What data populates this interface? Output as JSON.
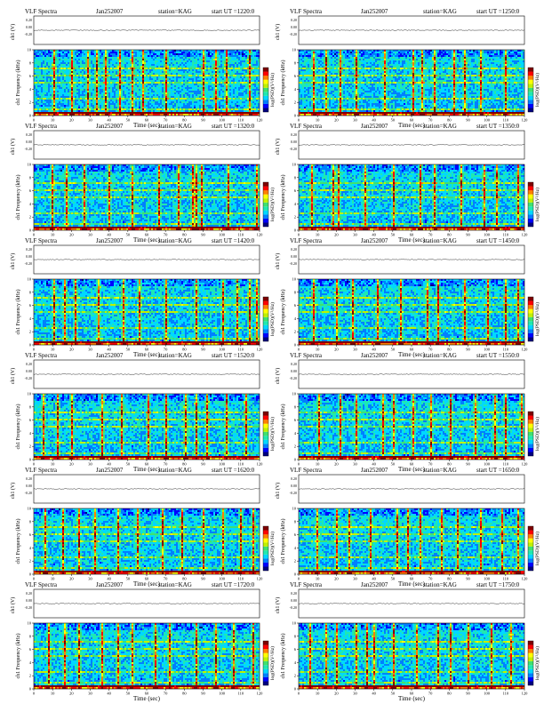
{
  "colors": {
    "colormap": [
      "#00007f",
      "#0000ff",
      "#0080ff",
      "#00d8ff",
      "#20e8b0",
      "#40e070",
      "#c0f000",
      "#ffff00",
      "#ff8000",
      "#ff0000",
      "#7f0000"
    ],
    "background": "#ffffff",
    "axis": "#000000"
  },
  "panels": [
    {
      "title": "VLF Spectra",
      "date": "Jan252007",
      "station": "station=KAG",
      "start": "start UT =1220:0",
      "ch_label": "ch1 (V)",
      "ch_ticks": [
        "0.20",
        "0.00",
        "-0.20"
      ],
      "freq_label": "ch1\nFrequency (kHz)",
      "freq_ticks": [
        "0",
        "2",
        "4",
        "6",
        "8",
        "10"
      ],
      "time_label": "Time (sec)",
      "time_ticks": [
        "0",
        "10",
        "20",
        "30",
        "40",
        "50",
        "60",
        "70",
        "80",
        "90",
        "100",
        "110",
        "120"
      ],
      "cbar_label": "log(PSD)(V²/Hz)"
    },
    {
      "title": "VLF Spectra",
      "date": "Jan252007",
      "station": "station=KAG",
      "start": "start UT =1250:0",
      "ch_label": "ch1 (V)",
      "ch_ticks": [
        "0.20",
        "0.00",
        "-0.20"
      ],
      "freq_label": "ch1\nFrequency (kHz)",
      "freq_ticks": [
        "0",
        "2",
        "4",
        "6",
        "8",
        "10"
      ],
      "time_label": "Time (sec)",
      "time_ticks": [
        "0",
        "10",
        "20",
        "30",
        "40",
        "50",
        "60",
        "70",
        "80",
        "90",
        "100",
        "110",
        "120"
      ],
      "cbar_label": "log(PSD)(V²/Hz)"
    },
    {
      "title": "VLF Spectra",
      "date": "Jan252007",
      "station": "station=KAG",
      "start": "start UT =1320:0",
      "ch_label": "ch1 (V)",
      "ch_ticks": [
        "0.20",
        "0.00",
        "-0.20"
      ],
      "freq_label": "ch1\nFrequency (kHz)",
      "freq_ticks": [
        "0",
        "2",
        "4",
        "6",
        "8",
        "10"
      ],
      "time_label": "Time (sec)",
      "time_ticks": [
        "0",
        "10",
        "20",
        "30",
        "40",
        "50",
        "60",
        "70",
        "80",
        "90",
        "100",
        "110",
        "120"
      ],
      "cbar_label": "log(PSD)(V²/Hz)"
    },
    {
      "title": "VLF Spectra",
      "date": "Jan252007",
      "station": "station=KAG",
      "start": "start UT =1350:0",
      "ch_label": "ch1 (V)",
      "ch_ticks": [
        "0.20",
        "0.00",
        "-0.20"
      ],
      "freq_label": "ch1\nFrequency (kHz)",
      "freq_ticks": [
        "0",
        "2",
        "4",
        "6",
        "8",
        "10"
      ],
      "time_label": "Time (sec)",
      "time_ticks": [
        "0",
        "10",
        "20",
        "30",
        "40",
        "50",
        "60",
        "70",
        "80",
        "90",
        "100",
        "110",
        "120"
      ],
      "cbar_label": "log(PSD)(V²/Hz)"
    },
    {
      "title": "VLF Spectra",
      "date": "Jan252007",
      "station": "station=KAG",
      "start": "start UT =1420:0",
      "ch_label": "ch1 (V)",
      "ch_ticks": [
        "0.20",
        "0.00",
        "-0.20"
      ],
      "freq_label": "ch1\nFrequency (kHz)",
      "freq_ticks": [
        "0",
        "2",
        "4",
        "6",
        "8",
        "10"
      ],
      "time_label": "Time (sec)",
      "time_ticks": [
        "0",
        "10",
        "20",
        "30",
        "40",
        "50",
        "60",
        "70",
        "80",
        "90",
        "100",
        "110",
        "120"
      ],
      "cbar_label": "log(PSD)(V²/Hz)"
    },
    {
      "title": "VLF Spectra",
      "date": "Jan252007",
      "station": "station=KAG",
      "start": "start UT =1450:0",
      "ch_label": "ch1 (V)",
      "ch_ticks": [
        "0.20",
        "0.00",
        "-0.20"
      ],
      "freq_label": "ch1\nFrequency (kHz)",
      "freq_ticks": [
        "0",
        "2",
        "4",
        "6",
        "8",
        "10"
      ],
      "time_label": "Time (sec)",
      "time_ticks": [
        "0",
        "10",
        "20",
        "30",
        "40",
        "50",
        "60",
        "70",
        "80",
        "90",
        "100",
        "110",
        "120"
      ],
      "cbar_label": "log(PSD)(V²/Hz)"
    },
    {
      "title": "VLF Spectra",
      "date": "Jan252007",
      "station": "station=KAG",
      "start": "start UT =1520:0",
      "ch_label": "ch1 (V)",
      "ch_ticks": [
        "0.20",
        "0.00",
        "-0.20"
      ],
      "freq_label": "ch1\nFrequency (kHz)",
      "freq_ticks": [
        "0",
        "2",
        "4",
        "6",
        "8",
        "10"
      ],
      "time_label": "Time (sec)",
      "time_ticks": [
        "0",
        "10",
        "20",
        "30",
        "40",
        "50",
        "60",
        "70",
        "80",
        "90",
        "100",
        "110",
        "120"
      ],
      "cbar_label": "log(PSD)(V²/Hz)"
    },
    {
      "title": "VLF Spectra",
      "date": "Jan252007",
      "station": "station=KAG",
      "start": "start UT =1550:0",
      "ch_label": "ch1 (V)",
      "ch_ticks": [
        "0.20",
        "0.00",
        "-0.20"
      ],
      "freq_label": "ch1\nFrequency (kHz)",
      "freq_ticks": [
        "0",
        "2",
        "4",
        "6",
        "8",
        "10"
      ],
      "time_label": "Time (sec)",
      "time_ticks": [
        "0",
        "10",
        "20",
        "30",
        "40",
        "50",
        "60",
        "70",
        "80",
        "90",
        "100",
        "110",
        "120"
      ],
      "cbar_label": "log(PSD)(V²/Hz)"
    },
    {
      "title": "VLF Spectra",
      "date": "Jan252007",
      "station": "station=KAG",
      "start": "start UT =1620:0",
      "ch_label": "ch1 (V)",
      "ch_ticks": [
        "0.20",
        "0.00",
        "-0.20"
      ],
      "freq_label": "ch1\nFrequency (kHz)",
      "freq_ticks": [
        "0",
        "2",
        "4",
        "6",
        "8",
        "10"
      ],
      "time_label": "Time (sec)",
      "time_ticks": [
        "0",
        "10",
        "20",
        "30",
        "40",
        "50",
        "60",
        "70",
        "80",
        "90",
        "100",
        "110",
        "120"
      ],
      "cbar_label": "log(PSD)(V²/Hz)"
    },
    {
      "title": "VLF Spectra",
      "date": "Jan252007",
      "station": "station=KAG",
      "start": "start UT =1650:0",
      "ch_label": "ch1 (V)",
      "ch_ticks": [
        "0.20",
        "0.00",
        "-0.20"
      ],
      "freq_label": "ch1\nFrequency (kHz)",
      "freq_ticks": [
        "0",
        "2",
        "4",
        "6",
        "8",
        "10"
      ],
      "time_label": "Time (sec)",
      "time_ticks": [
        "0",
        "10",
        "20",
        "30",
        "40",
        "50",
        "60",
        "70",
        "80",
        "90",
        "100",
        "110",
        "120"
      ],
      "cbar_label": "log(PSD)(V²/Hz)"
    },
    {
      "title": "VLF Spectra",
      "date": "Jan252007",
      "station": "station=KAG",
      "start": "start UT =1720:0",
      "ch_label": "ch1 (V)",
      "ch_ticks": [
        "0.20",
        "0.00",
        "-0.20"
      ],
      "freq_label": "ch1\nFrequency (kHz)",
      "freq_ticks": [
        "0",
        "2",
        "4",
        "6",
        "8",
        "10"
      ],
      "time_label": "Time (sec)",
      "time_ticks": [
        "0",
        "10",
        "20",
        "30",
        "40",
        "50",
        "60",
        "70",
        "80",
        "90",
        "100",
        "110",
        "120"
      ],
      "cbar_label": "log(PSD)(V²/Hz)"
    },
    {
      "title": "VLF Spectra",
      "date": "Jan252007",
      "station": "station=KAG",
      "start": "start UT =1750:0",
      "ch_label": "ch1 (V)",
      "ch_ticks": [
        "0.20",
        "0.00",
        "-0.20"
      ],
      "freq_label": "ch1\nFrequency (kHz)",
      "freq_ticks": [
        "0",
        "2",
        "4",
        "6",
        "8",
        "10"
      ],
      "time_label": "Time (sec)",
      "time_ticks": [
        "0",
        "10",
        "20",
        "30",
        "40",
        "50",
        "60",
        "70",
        "80",
        "90",
        "100",
        "110",
        "120"
      ],
      "cbar_label": "log(PSD)(V²/Hz)"
    }
  ],
  "chart_data": [
    {
      "type": "heatmap",
      "title": "VLF Spectra Jan252007 station=KAG start UT =1220:0",
      "xlabel": "Time (sec)",
      "ylabel": "ch1 Frequency (kHz)",
      "xlim": [
        0,
        120
      ],
      "ylim": [
        0,
        10
      ],
      "colorbar_label": "log(PSD)(V²/Hz)",
      "vertical_bursts_sec": [
        10,
        20,
        28,
        33,
        38,
        45,
        52,
        58,
        70,
        90,
        96,
        102,
        114
      ],
      "horizontal_bands_khz": [
        0.3,
        0.8,
        2.5,
        5.0,
        6.2,
        7.2
      ]
    },
    {
      "type": "heatmap",
      "title": "VLF Spectra Jan252007 station=KAG start UT =1250:0",
      "xlabel": "Time (sec)",
      "ylabel": "ch1 Frequency (kHz)",
      "xlim": [
        0,
        120
      ],
      "ylim": [
        0,
        10
      ],
      "colorbar_label": "log(PSD)(V²/Hz)",
      "vertical_bursts_sec": [
        8,
        14,
        22,
        30,
        45,
        60,
        65,
        72,
        82,
        88,
        96,
        110
      ],
      "horizontal_bands_khz": [
        0.3,
        0.8,
        2.5,
        5.0,
        6.2,
        7.2
      ]
    },
    {
      "type": "heatmap",
      "title": "VLF Spectra Jan252007 station=KAG start UT =1320:0",
      "xlabel": "Time (sec)",
      "ylabel": "ch1 Frequency (kHz)",
      "xlim": [
        0,
        120
      ],
      "ylim": [
        0,
        10
      ],
      "colorbar_label": "log(PSD)(V²/Hz)",
      "vertical_bursts_sec": [
        9,
        17,
        26,
        40,
        52,
        66,
        77,
        84,
        86,
        89,
        103,
        118
      ],
      "horizontal_bands_khz": [
        0.3,
        0.8,
        2.5,
        5.0,
        6.2,
        7.2
      ]
    },
    {
      "type": "heatmap",
      "title": "VLF Spectra Jan252007 station=KAG start UT =1350:0",
      "xlabel": "Time (sec)",
      "ylabel": "ch1 Frequency (kHz)",
      "xlim": [
        0,
        120
      ],
      "ylim": [
        0,
        10
      ],
      "colorbar_label": "log(PSD)(V²/Hz)",
      "vertical_bursts_sec": [
        7,
        18,
        21,
        35,
        50,
        64,
        72,
        86,
        98,
        105,
        116
      ],
      "horizontal_bands_khz": [
        0.3,
        0.8,
        2.5,
        5.0,
        6.2,
        7.2
      ]
    },
    {
      "type": "heatmap",
      "title": "VLF Spectra Jan252007 station=KAG start UT =1420:0",
      "xlabel": "Time (sec)",
      "ylabel": "ch1 Frequency (kHz)",
      "xlim": [
        0,
        120
      ],
      "ylim": [
        0,
        10
      ],
      "colorbar_label": "log(PSD)(V²/Hz)",
      "vertical_bursts_sec": [
        10,
        16,
        22,
        34,
        47,
        56,
        70,
        86,
        100,
        108,
        114,
        118
      ],
      "horizontal_bands_khz": [
        0.3,
        0.8,
        2.5,
        5.0,
        6.2,
        7.2
      ]
    },
    {
      "type": "heatmap",
      "title": "VLF Spectra Jan252007 station=KAG start UT =1450:0",
      "xlabel": "Time (sec)",
      "ylabel": "ch1 Frequency (kHz)",
      "xlim": [
        0,
        120
      ],
      "ylim": [
        0,
        10
      ],
      "colorbar_label": "log(PSD)(V²/Hz)",
      "vertical_bursts_sec": [
        8,
        20,
        28,
        42,
        54,
        68,
        74,
        88,
        100,
        110,
        116
      ],
      "horizontal_bands_khz": [
        0.3,
        0.8,
        2.5,
        5.0,
        6.2,
        7.2
      ]
    },
    {
      "type": "heatmap",
      "title": "VLF Spectra Jan252007 station=KAG start UT =1520:0",
      "xlabel": "Time (sec)",
      "ylabel": "ch1 Frequency (kHz)",
      "xlim": [
        0,
        120
      ],
      "ylim": [
        0,
        10
      ],
      "colorbar_label": "log(PSD)(V²/Hz)",
      "vertical_bursts_sec": [
        5,
        12,
        20,
        36,
        46,
        60,
        70,
        80,
        86,
        92,
        102,
        112
      ],
      "horizontal_bands_khz": [
        0.3,
        0.8,
        2.5,
        5.0,
        6.2,
        7.2
      ]
    },
    {
      "type": "heatmap",
      "title": "VLF Spectra Jan252007 station=KAG start UT =1550:0",
      "xlabel": "Time (sec)",
      "ylabel": "ch1 Frequency (kHz)",
      "xlim": [
        0,
        120
      ],
      "ylim": [
        0,
        10
      ],
      "colorbar_label": "log(PSD)(V²/Hz)",
      "vertical_bursts_sec": [
        10,
        22,
        30,
        44,
        50,
        60,
        70,
        80,
        94,
        104,
        110,
        118
      ],
      "horizontal_bands_khz": [
        0.3,
        0.8,
        2.5,
        5.0,
        6.2,
        7.2
      ]
    },
    {
      "type": "heatmap",
      "title": "VLF Spectra Jan252007 station=KAG start UT =1620:0",
      "xlabel": "Time (sec)",
      "ylabel": "ch1 Frequency (kHz)",
      "xlim": [
        0,
        120
      ],
      "ylim": [
        0,
        10
      ],
      "colorbar_label": "log(PSD)(V²/Hz)",
      "vertical_bursts_sec": [
        6,
        15,
        24,
        32,
        44,
        55,
        68,
        78,
        90,
        100,
        110,
        116
      ],
      "horizontal_bands_khz": [
        0.3,
        0.8,
        2.5,
        5.0,
        6.2,
        7.2
      ]
    },
    {
      "type": "heatmap",
      "title": "VLF Spectra Jan252007 station=KAG start UT =1650:0",
      "xlabel": "Time (sec)",
      "ylabel": "ch1 Frequency (kHz)",
      "xlim": [
        0,
        120
      ],
      "ylim": [
        0,
        10
      ],
      "colorbar_label": "log(PSD)(V²/Hz)",
      "vertical_bursts_sec": [
        9,
        20,
        26,
        38,
        52,
        58,
        64,
        76,
        84,
        96,
        108,
        116
      ],
      "horizontal_bands_khz": [
        0.3,
        0.8,
        2.5,
        5.0,
        6.2,
        7.2
      ]
    },
    {
      "type": "heatmap",
      "title": "VLF Spectra Jan252007 station=KAG start UT =1720:0",
      "xlabel": "Time (sec)",
      "ylabel": "ch1 Frequency (kHz)",
      "xlim": [
        0,
        120
      ],
      "ylim": [
        0,
        10
      ],
      "colorbar_label": "log(PSD)(V²/Hz)",
      "vertical_bursts_sec": [
        8,
        16,
        24,
        36,
        44,
        52,
        64,
        72,
        86,
        96,
        106,
        116
      ],
      "horizontal_bands_khz": [
        0.3,
        0.8,
        2.5,
        5.0,
        6.2,
        7.2
      ]
    },
    {
      "type": "heatmap",
      "title": "VLF Spectra Jan252007 station=KAG start UT =1750:0",
      "xlabel": "Time (sec)",
      "ylabel": "ch1 Frequency (kHz)",
      "xlim": [
        0,
        120
      ],
      "ylim": [
        0,
        10
      ],
      "colorbar_label": "log(PSD)(V²/Hz)",
      "vertical_bursts_sec": [
        6,
        14,
        20,
        30,
        36,
        40,
        50,
        62,
        74,
        80,
        90,
        102,
        112
      ],
      "horizontal_bands_khz": [
        0.3,
        0.8,
        2.5,
        5.0,
        6.2,
        7.2
      ]
    }
  ]
}
